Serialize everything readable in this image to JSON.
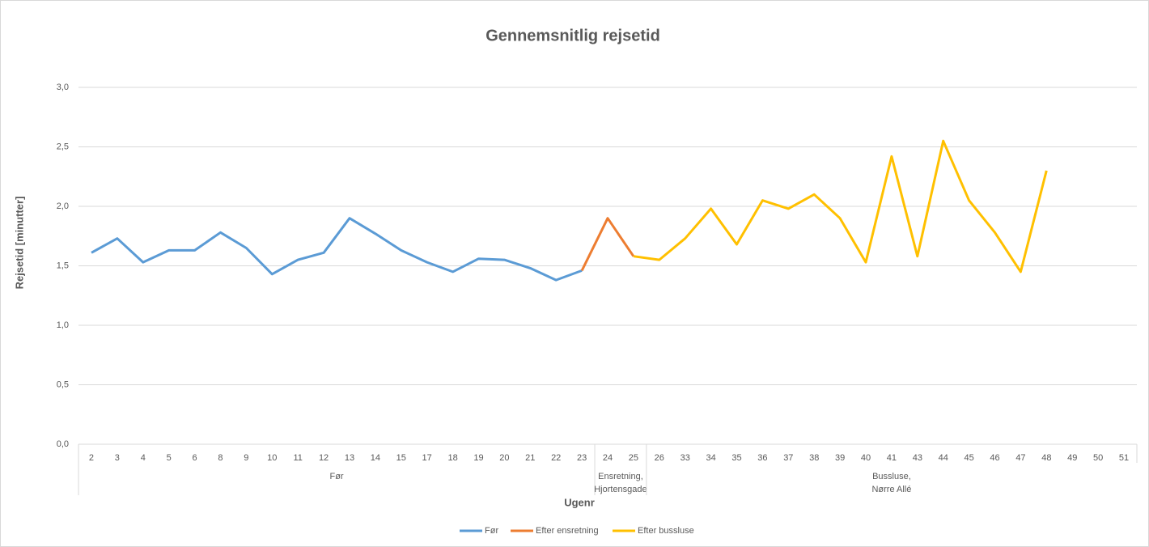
{
  "chart_data": {
    "type": "line",
    "title": "Gennemsnitlig rejsetid",
    "y_label": "Rejsetid [minutter]",
    "x_label": "Ugenr",
    "groups": [
      {
        "lines": [
          "Før"
        ],
        "categories": [
          2,
          3,
          4,
          5,
          6,
          8,
          9,
          10,
          11,
          12,
          13,
          14,
          15,
          17,
          18,
          19,
          20,
          21,
          22,
          23
        ]
      },
      {
        "lines": [
          "Ensretning,",
          "Hjortensgade"
        ],
        "categories": [
          24,
          25
        ]
      },
      {
        "lines": [
          "Bussluse,",
          "Nørre Allé"
        ],
        "categories": [
          26,
          33,
          34,
          35,
          36,
          37,
          38,
          39,
          40,
          41,
          43,
          44,
          45,
          46,
          47,
          48,
          49,
          50,
          51
        ]
      }
    ],
    "series": [
      {
        "name": "Før",
        "color": "#5b9bd5",
        "values": [
          1.61,
          1.73,
          1.53,
          1.63,
          1.63,
          1.78,
          1.65,
          1.43,
          1.55,
          1.61,
          1.9,
          1.77,
          1.63,
          1.53,
          1.45,
          1.56,
          1.55,
          1.48,
          1.38,
          1.46,
          null,
          null,
          null,
          null,
          null,
          null,
          null,
          null,
          null,
          null,
          null,
          null,
          null,
          null,
          null,
          null,
          null,
          null,
          null,
          null,
          null
        ]
      },
      {
        "name": "Efter ensretning",
        "color": "#ed7d31",
        "values": [
          null,
          null,
          null,
          null,
          null,
          null,
          null,
          null,
          null,
          null,
          null,
          null,
          null,
          null,
          null,
          null,
          null,
          null,
          null,
          1.46,
          1.9,
          1.58,
          null,
          null,
          null,
          null,
          null,
          null,
          null,
          null,
          null,
          null,
          null,
          null,
          null,
          null,
          null,
          null,
          null,
          null,
          null
        ]
      },
      {
        "name": "Efter bussluse",
        "color": "#ffc000",
        "values": [
          null,
          null,
          null,
          null,
          null,
          null,
          null,
          null,
          null,
          null,
          null,
          null,
          null,
          null,
          null,
          null,
          null,
          null,
          null,
          null,
          null,
          1.58,
          1.55,
          1.73,
          1.98,
          1.68,
          2.05,
          1.98,
          2.1,
          1.9,
          1.53,
          2.42,
          1.58,
          2.55,
          2.05,
          1.78,
          1.45,
          2.3,
          null,
          null,
          null
        ]
      }
    ],
    "ylim": [
      0,
      3
    ],
    "yticks": [
      {
        "value": 0,
        "label": "0,0"
      },
      {
        "value": 0.5,
        "label": "0,5"
      },
      {
        "value": 1,
        "label": "1,0"
      },
      {
        "value": 1.5,
        "label": "1,5"
      },
      {
        "value": 2,
        "label": "2,0"
      },
      {
        "value": 2.5,
        "label": "2,5"
      },
      {
        "value": 3,
        "label": "3,0"
      }
    ],
    "grid": true,
    "legend": "bottom"
  }
}
